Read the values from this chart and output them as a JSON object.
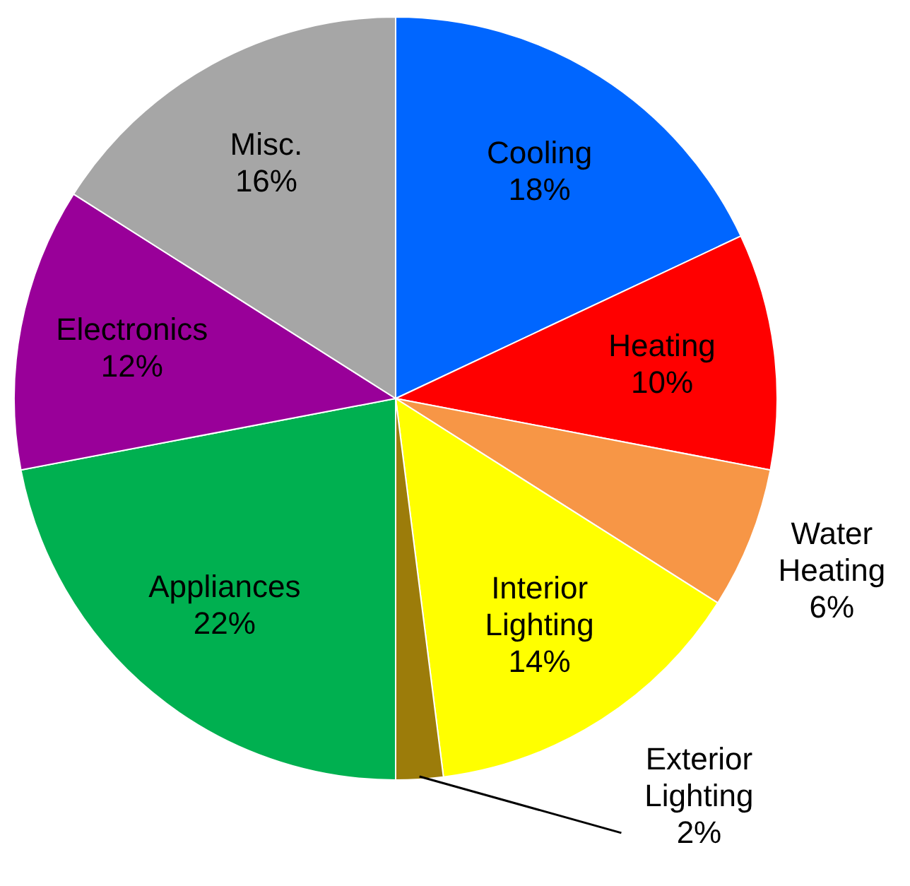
{
  "chart_data": {
    "type": "pie",
    "categories": [
      "Cooling",
      "Heating",
      "Water Heating",
      "Interior Lighting",
      "Exterior Lighting",
      "Appliances",
      "Electronics",
      "Misc."
    ],
    "values": [
      18,
      10,
      6,
      14,
      2,
      22,
      12,
      16
    ],
    "value_labels": [
      "18%",
      "10%",
      "6%",
      "14%",
      "2%",
      "22%",
      "12%",
      "16%"
    ],
    "colors": [
      "#0066ff",
      "#ff0000",
      "#f79646",
      "#ffff00",
      "#9c7c0a",
      "#00b050",
      "#990099",
      "#a6a6a6"
    ]
  }
}
